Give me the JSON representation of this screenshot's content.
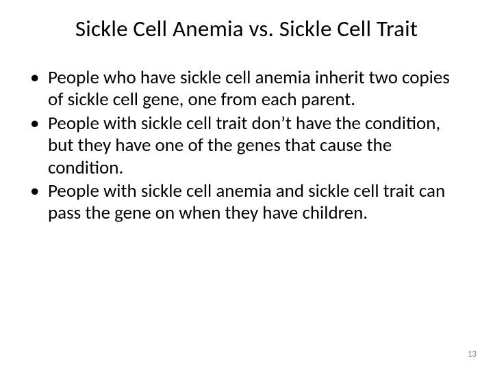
{
  "slide": {
    "title": "Sickle Cell Anemia vs. Sickle Cell Trait",
    "bullets": [
      "People who have sickle cell anemia inherit two copies of sickle cell gene, one from each parent.",
      " People with sickle cell trait don’t have the condition, but they have one of the genes that cause the condition.",
      "People with sickle cell anemia and sickle cell trait can pass the gene on when they have children."
    ],
    "page_number": "13",
    "colors": {
      "background": "#ffffff",
      "text": "#000000",
      "page_number": "#8a8a8a"
    },
    "typography": {
      "title_fontsize": 33,
      "body_fontsize": 27,
      "page_number_fontsize": 13,
      "font_family": "Calibri"
    }
  }
}
